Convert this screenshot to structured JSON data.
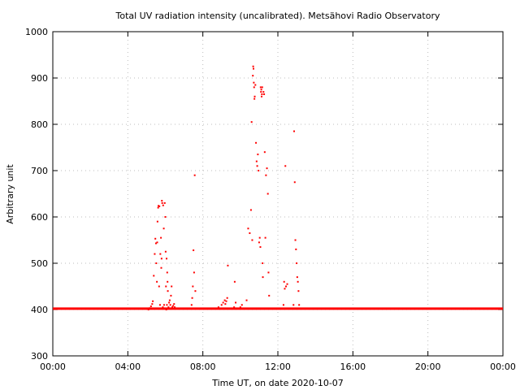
{
  "chart_data": {
    "type": "scatter",
    "title": "Total UV radiation intensity (uncalibrated). Metsähovi Radio Observatory",
    "xlabel": "Time UT, on date 2020-10-07",
    "ylabel": "Arbitrary unit",
    "xlim": [
      "00:00",
      "24:00"
    ],
    "ylim": [
      300,
      1000
    ],
    "x_ticks": [
      "00:00",
      "04:00",
      "08:00",
      "12:00",
      "16:00",
      "20:00",
      "00:00"
    ],
    "y_ticks": [
      "300",
      "400",
      "500",
      "600",
      "700",
      "800",
      "900",
      "1000"
    ],
    "grid": true,
    "marker_color": "#ff0000",
    "baseline": {
      "value": 402,
      "from": "00:00",
      "to": "24:00"
    },
    "series": [
      {
        "x": [
          "05:06",
          "05:10",
          "05:14",
          "05:18",
          "05:20",
          "05:23",
          "05:26",
          "05:28",
          "05:30",
          "05:31",
          "05:33",
          "05:34",
          "05:35",
          "05:37",
          "05:38",
          "05:40",
          "05:41",
          "05:43",
          "05:44",
          "05:46",
          "05:47",
          "05:48",
          "05:49",
          "05:50",
          "05:52",
          "05:53",
          "05:55",
          "05:56",
          "05:58",
          "06:00",
          "06:01",
          "06:02",
          "06:03",
          "06:04",
          "06:05",
          "06:06",
          "06:07",
          "06:08",
          "06:10",
          "06:12",
          "06:14",
          "06:16",
          "06:18",
          "06:20",
          "06:22",
          "06:25",
          "06:28",
          "06:30",
          "07:24",
          "07:26",
          "07:28",
          "07:30",
          "07:32",
          "07:34",
          "07:36",
          "08:50",
          "09:00",
          "09:05",
          "09:10",
          "09:12",
          "09:15",
          "09:18",
          "09:20",
          "09:40",
          "09:42",
          "09:45",
          "10:00",
          "10:05",
          "10:20",
          "10:25",
          "10:30",
          "10:34",
          "10:36",
          "10:38",
          "10:40",
          "10:41",
          "10:42",
          "10:43",
          "10:44",
          "10:45",
          "10:46",
          "10:48",
          "10:50",
          "10:52",
          "10:54",
          "10:56",
          "10:58",
          "11:00",
          "11:02",
          "11:04",
          "11:05",
          "11:06",
          "11:07",
          "11:08",
          "11:09",
          "11:10",
          "11:11",
          "11:12",
          "11:14",
          "11:16",
          "11:18",
          "11:20",
          "11:22",
          "11:25",
          "11:28",
          "11:30",
          "11:32",
          "12:18",
          "12:20",
          "12:22",
          "12:24",
          "12:26",
          "12:30",
          "12:50",
          "12:52",
          "12:54",
          "12:56",
          "12:58",
          "13:00",
          "13:02",
          "13:04",
          "13:06",
          "13:08"
        ],
        "values": [
          400,
          403,
          407,
          412,
          418,
          473,
          520,
          553,
          543,
          500,
          460,
          545,
          590,
          620,
          624,
          450,
          623,
          410,
          520,
          555,
          490,
          510,
          635,
          630,
          405,
          625,
          575,
          410,
          630,
          600,
          525,
          450,
          400,
          510,
          410,
          480,
          460,
          440,
          405,
          415,
          420,
          410,
          430,
          450,
          405,
          408,
          412,
          405,
          410,
          425,
          450,
          528,
          480,
          690,
          440,
          405,
          410,
          415,
          420,
          412,
          418,
          425,
          495,
          405,
          460,
          415,
          405,
          410,
          420,
          575,
          565,
          615,
          805,
          550,
          905,
          925,
          920,
          890,
          880,
          855,
          860,
          885,
          760,
          720,
          710,
          735,
          700,
          545,
          555,
          535,
          880,
          870,
          875,
          860,
          865,
          880,
          500,
          470,
          870,
          865,
          740,
          555,
          690,
          705,
          650,
          480,
          430,
          410,
          460,
          445,
          710,
          450,
          455,
          410,
          785,
          675,
          550,
          530,
          500,
          470,
          460,
          440,
          410
        ]
      }
    ]
  }
}
